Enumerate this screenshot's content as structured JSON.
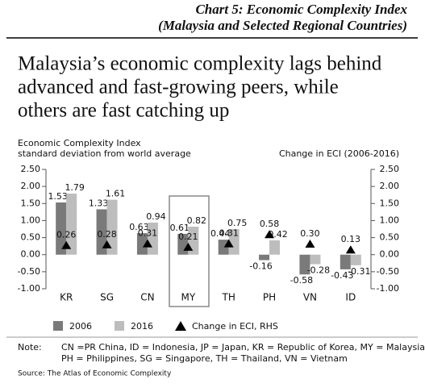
{
  "chart_data": {
    "type": "bar",
    "title": "Chart 5: Economic Complexity Index",
    "subtitle": "(Malaysia and Selected Regional Countries)",
    "headline": [
      "Malaysia’s economic complexity lags behind",
      "advanced and fast-growing peers, while",
      "others are fast catching up"
    ],
    "y_label": [
      "Economic Complexity Index",
      "standard deviation from world average"
    ],
    "y2_label": "Change in ECI (2006-2016)",
    "categories": [
      "KR",
      "SG",
      "CN",
      "MY",
      "TH",
      "PH",
      "VN",
      "ID"
    ],
    "series": [
      {
        "name": "2006",
        "color": "#7a7a7a",
        "values": [
          1.53,
          1.33,
          0.63,
          0.61,
          0.44,
          -0.16,
          -0.58,
          -0.43
        ]
      },
      {
        "name": "2016",
        "color": "#bdbdbd",
        "values": [
          1.79,
          1.61,
          0.94,
          0.82,
          0.75,
          0.42,
          -0.28,
          -0.31
        ]
      },
      {
        "name": "Change in ECI, RHS",
        "color": "#000000",
        "axis": "y2",
        "marker": "triangle",
        "values": [
          0.26,
          0.28,
          0.31,
          0.21,
          0.31,
          0.58,
          0.3,
          0.13
        ],
        "value_labels": [
          "0.26",
          "0.28",
          "0.31",
          "0.21",
          "0.31",
          "0.58",
          "0.30",
          "0.13"
        ]
      }
    ],
    "ylim": [
      -1,
      2.5
    ],
    "yticks": [
      {
        "value": 2.5,
        "label": "2.50"
      },
      {
        "value": 2,
        "label": "2.00"
      },
      {
        "value": 1.5,
        "label": "1.50"
      },
      {
        "value": 1,
        "label": "1.00"
      },
      {
        "value": 0.5,
        "label": "0.50"
      },
      {
        "value": 0,
        "label": "0.00"
      },
      {
        "value": -0.5,
        "label": "-0.50"
      },
      {
        "value": -1,
        "label": "-1.00"
      }
    ],
    "y2lim": [
      -1,
      2.5
    ],
    "y2ticks": [
      {
        "value": 2.5,
        "label": "2.50"
      },
      {
        "value": 2,
        "label": "2.00"
      },
      {
        "value": 1.5,
        "label": "1.50"
      },
      {
        "value": 1,
        "label": "1.00"
      },
      {
        "value": 0.5,
        "label": "0.50"
      },
      {
        "value": 0,
        "label": "0.00"
      },
      {
        "value": -0.5,
        "label": "-0.50"
      },
      {
        "value": -1,
        "label": "-1.00"
      }
    ],
    "note_label": "Note:",
    "note": [
      "CN =PR China, ID = Indonesia, JP = Japan, KR = Republic of Korea, MY = Malaysia,",
      "PH = Philippines, SG = Singapore, TH = Thailand, VN = Vietnam"
    ],
    "source": "Source: The Atlas of Economic Complexity"
  }
}
